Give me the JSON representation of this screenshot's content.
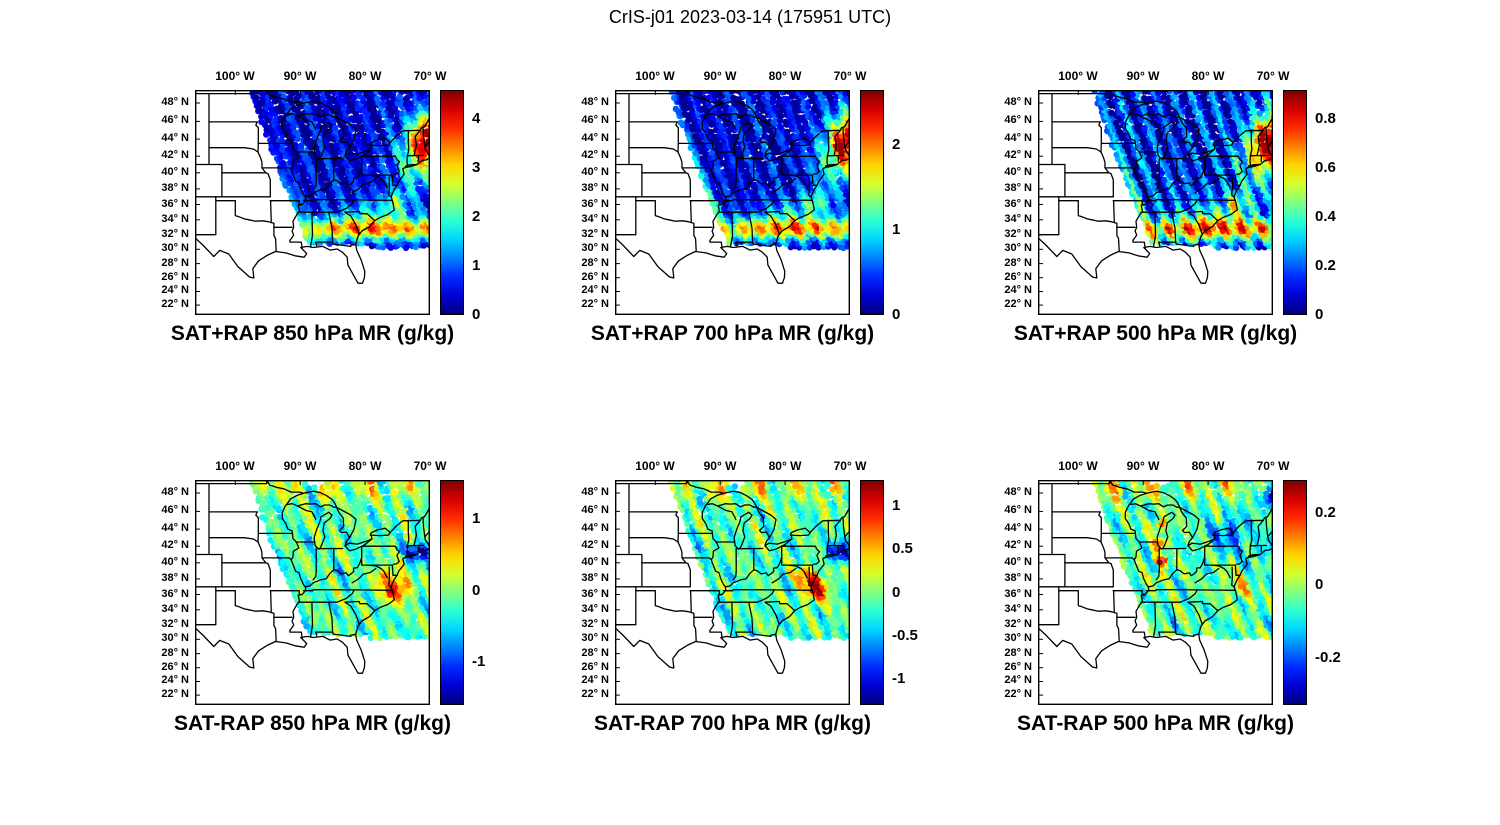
{
  "figure": {
    "title": "CrIS-j01 2023-03-14 (175951 UTC)"
  },
  "chart_data": {
    "type": "heatmap",
    "layout": "2 rows x 3 columns of geographic satellite-swath maps over the central/eastern United States, each with its own jet colorbar",
    "colormap": "jet",
    "x_axis": {
      "tick_labels": [
        "100° W",
        "90° W",
        "80° W",
        "70° W"
      ],
      "tick_values": [
        -100,
        -90,
        -80,
        -70
      ]
    },
    "y_axis": {
      "tick_labels": [
        "48° N",
        "46° N",
        "44° N",
        "42° N",
        "40° N",
        "38° N",
        "36° N",
        "34° N",
        "32° N",
        "30° N",
        "28° N",
        "26° N",
        "24° N",
        "22° N"
      ],
      "tick_values": [
        48,
        46,
        44,
        42,
        40,
        38,
        36,
        34,
        32,
        30,
        28,
        26,
        24,
        22
      ]
    },
    "panels": [
      {
        "title": "SAT+RAP 850 hPa MR (g/kg)",
        "row": 0,
        "col": 0,
        "mode": "absolute",
        "cmin": 0,
        "cmax": 4.6,
        "colorbar_ticks": [
          0,
          1,
          2,
          3,
          4
        ]
      },
      {
        "title": "SAT+RAP 700 hPa MR (g/kg)",
        "row": 0,
        "col": 1,
        "mode": "absolute",
        "cmin": 0,
        "cmax": 2.65,
        "colorbar_ticks": [
          0,
          1,
          2
        ]
      },
      {
        "title": "SAT+RAP 500 hPa MR (g/kg)",
        "row": 0,
        "col": 2,
        "mode": "absolute",
        "cmin": 0,
        "cmax": 0.92,
        "colorbar_ticks": [
          0,
          0.2,
          0.4,
          0.6,
          0.8
        ]
      },
      {
        "title": "SAT-RAP 850 hPa MR (g/kg)",
        "row": 1,
        "col": 0,
        "mode": "difference",
        "cmin": -1.6,
        "cmax": 1.55,
        "colorbar_ticks": [
          -1,
          0,
          1
        ]
      },
      {
        "title": "SAT-RAP 700 hPa MR (g/kg)",
        "row": 1,
        "col": 1,
        "mode": "difference",
        "cmin": -1.3,
        "cmax": 1.3,
        "colorbar_ticks": [
          -1,
          -0.5,
          0,
          0.5,
          1
        ]
      },
      {
        "title": "SAT-RAP 500 hPa MR (g/kg)",
        "row": 1,
        "col": 2,
        "mode": "difference",
        "cmin": -0.33,
        "cmax": 0.29,
        "colorbar_ticks": [
          -0.2,
          0,
          0.2
        ]
      }
    ]
  }
}
